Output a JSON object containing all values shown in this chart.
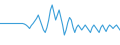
{
  "values": [
    -0.2,
    -0.2,
    -0.2,
    -0.2,
    -0.2,
    -0.2,
    -0.2,
    -0.2,
    -0.2,
    -0.2,
    -0.2,
    -0.2,
    -0.2,
    -0.2,
    -0.3,
    -0.5,
    -0.8,
    -1.2,
    -0.6,
    -0.2,
    0.3,
    0.8,
    1.5,
    0.5,
    -0.5,
    -1.5,
    -2.0,
    -1.0,
    0.5,
    2.5,
    3.5,
    2.0,
    0.5,
    1.5,
    2.5,
    1.0,
    -0.5,
    -2.5,
    -1.5,
    0.0,
    1.0,
    0.5,
    -1.0,
    -2.0,
    -1.0,
    -0.5,
    -1.0,
    -1.5,
    -1.0,
    -0.5,
    -1.0,
    -1.5,
    -2.0,
    -1.0,
    -0.5,
    -1.0,
    -1.5,
    -2.0,
    -1.0,
    -0.5,
    -1.2,
    -1.8,
    -1.0,
    -0.5,
    -0.8,
    -1.2,
    -0.8,
    -0.5,
    -1.0,
    -1.5
  ],
  "line_color": "#3a9fd9",
  "background_color": "#ffffff",
  "linewidth": 0.8
}
